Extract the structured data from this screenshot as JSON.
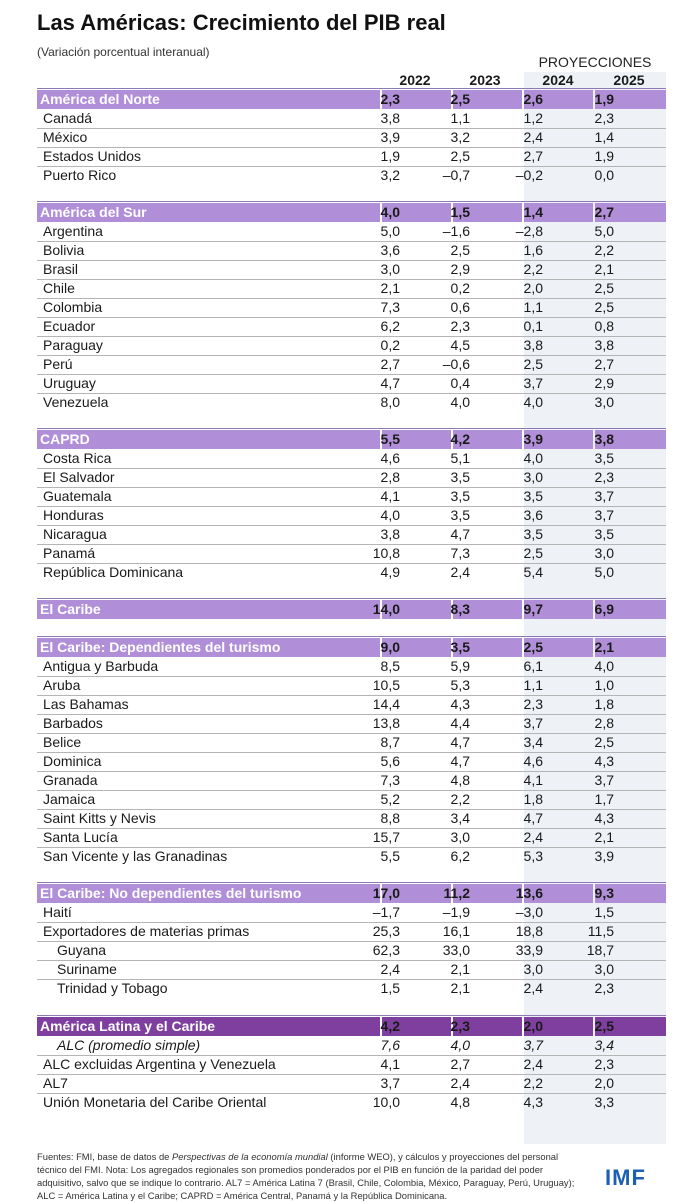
{
  "title": "Las Américas: Crecimiento del PIB real",
  "subtitle": "(Variación porcentual interanual)",
  "proj_label": "PROYECCIONES",
  "colors": {
    "group_bar": "#b08fd8",
    "group_bar_dark": "#7f3f9e",
    "projection_bg": "#eef1f6",
    "imf_blue": "#1d5fb4"
  },
  "chart_data": {
    "type": "table",
    "title": "Las Américas: Crecimiento del PIB real",
    "subtitle": "(Variación porcentual interanual)",
    "columns": [
      "2022",
      "2023",
      "2024",
      "2025"
    ],
    "projection_columns": [
      "2024",
      "2025"
    ],
    "rows": [
      {
        "label": "América del Norte",
        "values": [
          "2,3",
          "2,5",
          "2,6",
          "1,9"
        ],
        "kind": "group"
      },
      {
        "label": "Canadá",
        "values": [
          "3,8",
          "1,1",
          "1,2",
          "2,3"
        ]
      },
      {
        "label": "México",
        "values": [
          "3,9",
          "3,2",
          "2,4",
          "1,4"
        ]
      },
      {
        "label": "Estados Unidos",
        "values": [
          "1,9",
          "2,5",
          "2,7",
          "1,9"
        ]
      },
      {
        "label": "Puerto Rico",
        "values": [
          "3,2",
          "–0,7",
          "–0,2",
          "0,0"
        ]
      },
      {
        "label": "América del Sur",
        "values": [
          "4,0",
          "1,5",
          "1,4",
          "2,7"
        ],
        "kind": "group"
      },
      {
        "label": "Argentina",
        "values": [
          "5,0",
          "–1,6",
          "–2,8",
          "5,0"
        ]
      },
      {
        "label": "Bolivia",
        "values": [
          "3,6",
          "2,5",
          "1,6",
          "2,2"
        ]
      },
      {
        "label": "Brasil",
        "values": [
          "3,0",
          "2,9",
          "2,2",
          "2,1"
        ]
      },
      {
        "label": "Chile",
        "values": [
          "2,1",
          "0,2",
          "2,0",
          "2,5"
        ]
      },
      {
        "label": "Colombia",
        "values": [
          "7,3",
          "0,6",
          "1,1",
          "2,5"
        ]
      },
      {
        "label": "Ecuador",
        "values": [
          "6,2",
          "2,3",
          "0,1",
          "0,8"
        ]
      },
      {
        "label": "Paraguay",
        "values": [
          "0,2",
          "4,5",
          "3,8",
          "3,8"
        ]
      },
      {
        "label": "Perú",
        "values": [
          "2,7",
          "–0,6",
          "2,5",
          "2,7"
        ]
      },
      {
        "label": "Uruguay",
        "values": [
          "4,7",
          "0,4",
          "3,7",
          "2,9"
        ]
      },
      {
        "label": "Venezuela",
        "values": [
          "8,0",
          "4,0",
          "4,0",
          "3,0"
        ]
      },
      {
        "label": "CAPRD",
        "values": [
          "5,5",
          "4,2",
          "3,9",
          "3,8"
        ],
        "kind": "group"
      },
      {
        "label": "Costa Rica",
        "values": [
          "4,6",
          "5,1",
          "4,0",
          "3,5"
        ]
      },
      {
        "label": "El Salvador",
        "values": [
          "2,8",
          "3,5",
          "3,0",
          "2,3"
        ]
      },
      {
        "label": "Guatemala",
        "values": [
          "4,1",
          "3,5",
          "3,5",
          "3,7"
        ]
      },
      {
        "label": "Honduras",
        "values": [
          "4,0",
          "3,5",
          "3,6",
          "3,7"
        ]
      },
      {
        "label": "Nicaragua",
        "values": [
          "3,8",
          "4,7",
          "3,5",
          "3,5"
        ]
      },
      {
        "label": "Panamá",
        "values": [
          "10,8",
          "7,3",
          "2,5",
          "3,0"
        ]
      },
      {
        "label": "República Dominicana",
        "values": [
          "4,9",
          "2,4",
          "5,4",
          "5,0"
        ]
      },
      {
        "label": "El Caribe",
        "values": [
          "14,0",
          "8,3",
          "9,7",
          "6,9"
        ],
        "kind": "group"
      },
      {
        "label": "El Caribe: Dependientes del turismo",
        "values": [
          "9,0",
          "3,5",
          "2,5",
          "2,1"
        ],
        "kind": "group"
      },
      {
        "label": "Antigua y Barbuda",
        "values": [
          "8,5",
          "5,9",
          "6,1",
          "4,0"
        ]
      },
      {
        "label": "Aruba",
        "values": [
          "10,5",
          "5,3",
          "1,1",
          "1,0"
        ]
      },
      {
        "label": "Las Bahamas",
        "values": [
          "14,4",
          "4,3",
          "2,3",
          "1,8"
        ]
      },
      {
        "label": "Barbados",
        "values": [
          "13,8",
          "4,4",
          "3,7",
          "2,8"
        ]
      },
      {
        "label": "Belice",
        "values": [
          "8,7",
          "4,7",
          "3,4",
          "2,5"
        ]
      },
      {
        "label": "Dominica",
        "values": [
          "5,6",
          "4,7",
          "4,6",
          "4,3"
        ]
      },
      {
        "label": "Granada",
        "values": [
          "7,3",
          "4,8",
          "4,1",
          "3,7"
        ]
      },
      {
        "label": "Jamaica",
        "values": [
          "5,2",
          "2,2",
          "1,8",
          "1,7"
        ]
      },
      {
        "label": "Saint Kitts y Nevis",
        "values": [
          "8,8",
          "3,4",
          "4,7",
          "4,3"
        ]
      },
      {
        "label": "Santa Lucía",
        "values": [
          "15,7",
          "3,0",
          "2,4",
          "2,1"
        ]
      },
      {
        "label": "San Vicente y las Granadinas",
        "values": [
          "5,5",
          "6,2",
          "5,3",
          "3,9"
        ]
      },
      {
        "label": "El Caribe: No dependientes del turismo",
        "values": [
          "17,0",
          "11,2",
          "13,6",
          "9,3"
        ],
        "kind": "group"
      },
      {
        "label": "Haití",
        "values": [
          "–1,7",
          "–1,9",
          "–3,0",
          "1,5"
        ]
      },
      {
        "label": "Exportadores de materias primas",
        "values": [
          "25,3",
          "16,1",
          "18,8",
          "11,5"
        ]
      },
      {
        "label": "Guyana",
        "values": [
          "62,3",
          "33,0",
          "33,9",
          "18,7"
        ],
        "indent": true
      },
      {
        "label": "Suriname",
        "values": [
          "2,4",
          "2,1",
          "3,0",
          "3,0"
        ],
        "indent": true
      },
      {
        "label": "Trinidad y Tobago",
        "values": [
          "1,5",
          "2,1",
          "2,4",
          "2,3"
        ],
        "indent": true
      },
      {
        "label": "América Latina y el Caribe",
        "values": [
          "4,2",
          "2,3",
          "2,0",
          "2,5"
        ],
        "kind": "group-dark"
      },
      {
        "label": "ALC (promedio simple)",
        "values": [
          "7,6",
          "4,0",
          "3,7",
          "3,4"
        ],
        "italic": true,
        "indent": true
      },
      {
        "label": "ALC excluidas Argentina y Venezuela",
        "values": [
          "4,1",
          "2,7",
          "2,4",
          "2,3"
        ]
      },
      {
        "label": "AL7",
        "values": [
          "3,7",
          "2,4",
          "2,2",
          "2,0"
        ]
      },
      {
        "label": "Unión Monetaria del Caribe Oriental",
        "values": [
          "10,0",
          "4,8",
          "4,3",
          "3,3"
        ]
      }
    ]
  },
  "footer": {
    "p1": "Fuentes: FMI, base de datos de ",
    "p2": "Perspectivas de la economía mundial",
    "p3": " (informe WEO), y cálculos y proyecciones del personal técnico del FMI.",
    "p4": " Nota: Los agregados regionales son promedios ponderados por el PIB en función de la paridad del poder adquisitivo, salvo que se indique lo contrario. AL7 = América Latina 7 (Brasil, Chile, Colombia, México, Paraguay, Perú, Uruguay); ALC = América Latina y el Caribe; CAPRD = América Central, Panamá y la República Dominicana."
  },
  "logo": "IMF"
}
